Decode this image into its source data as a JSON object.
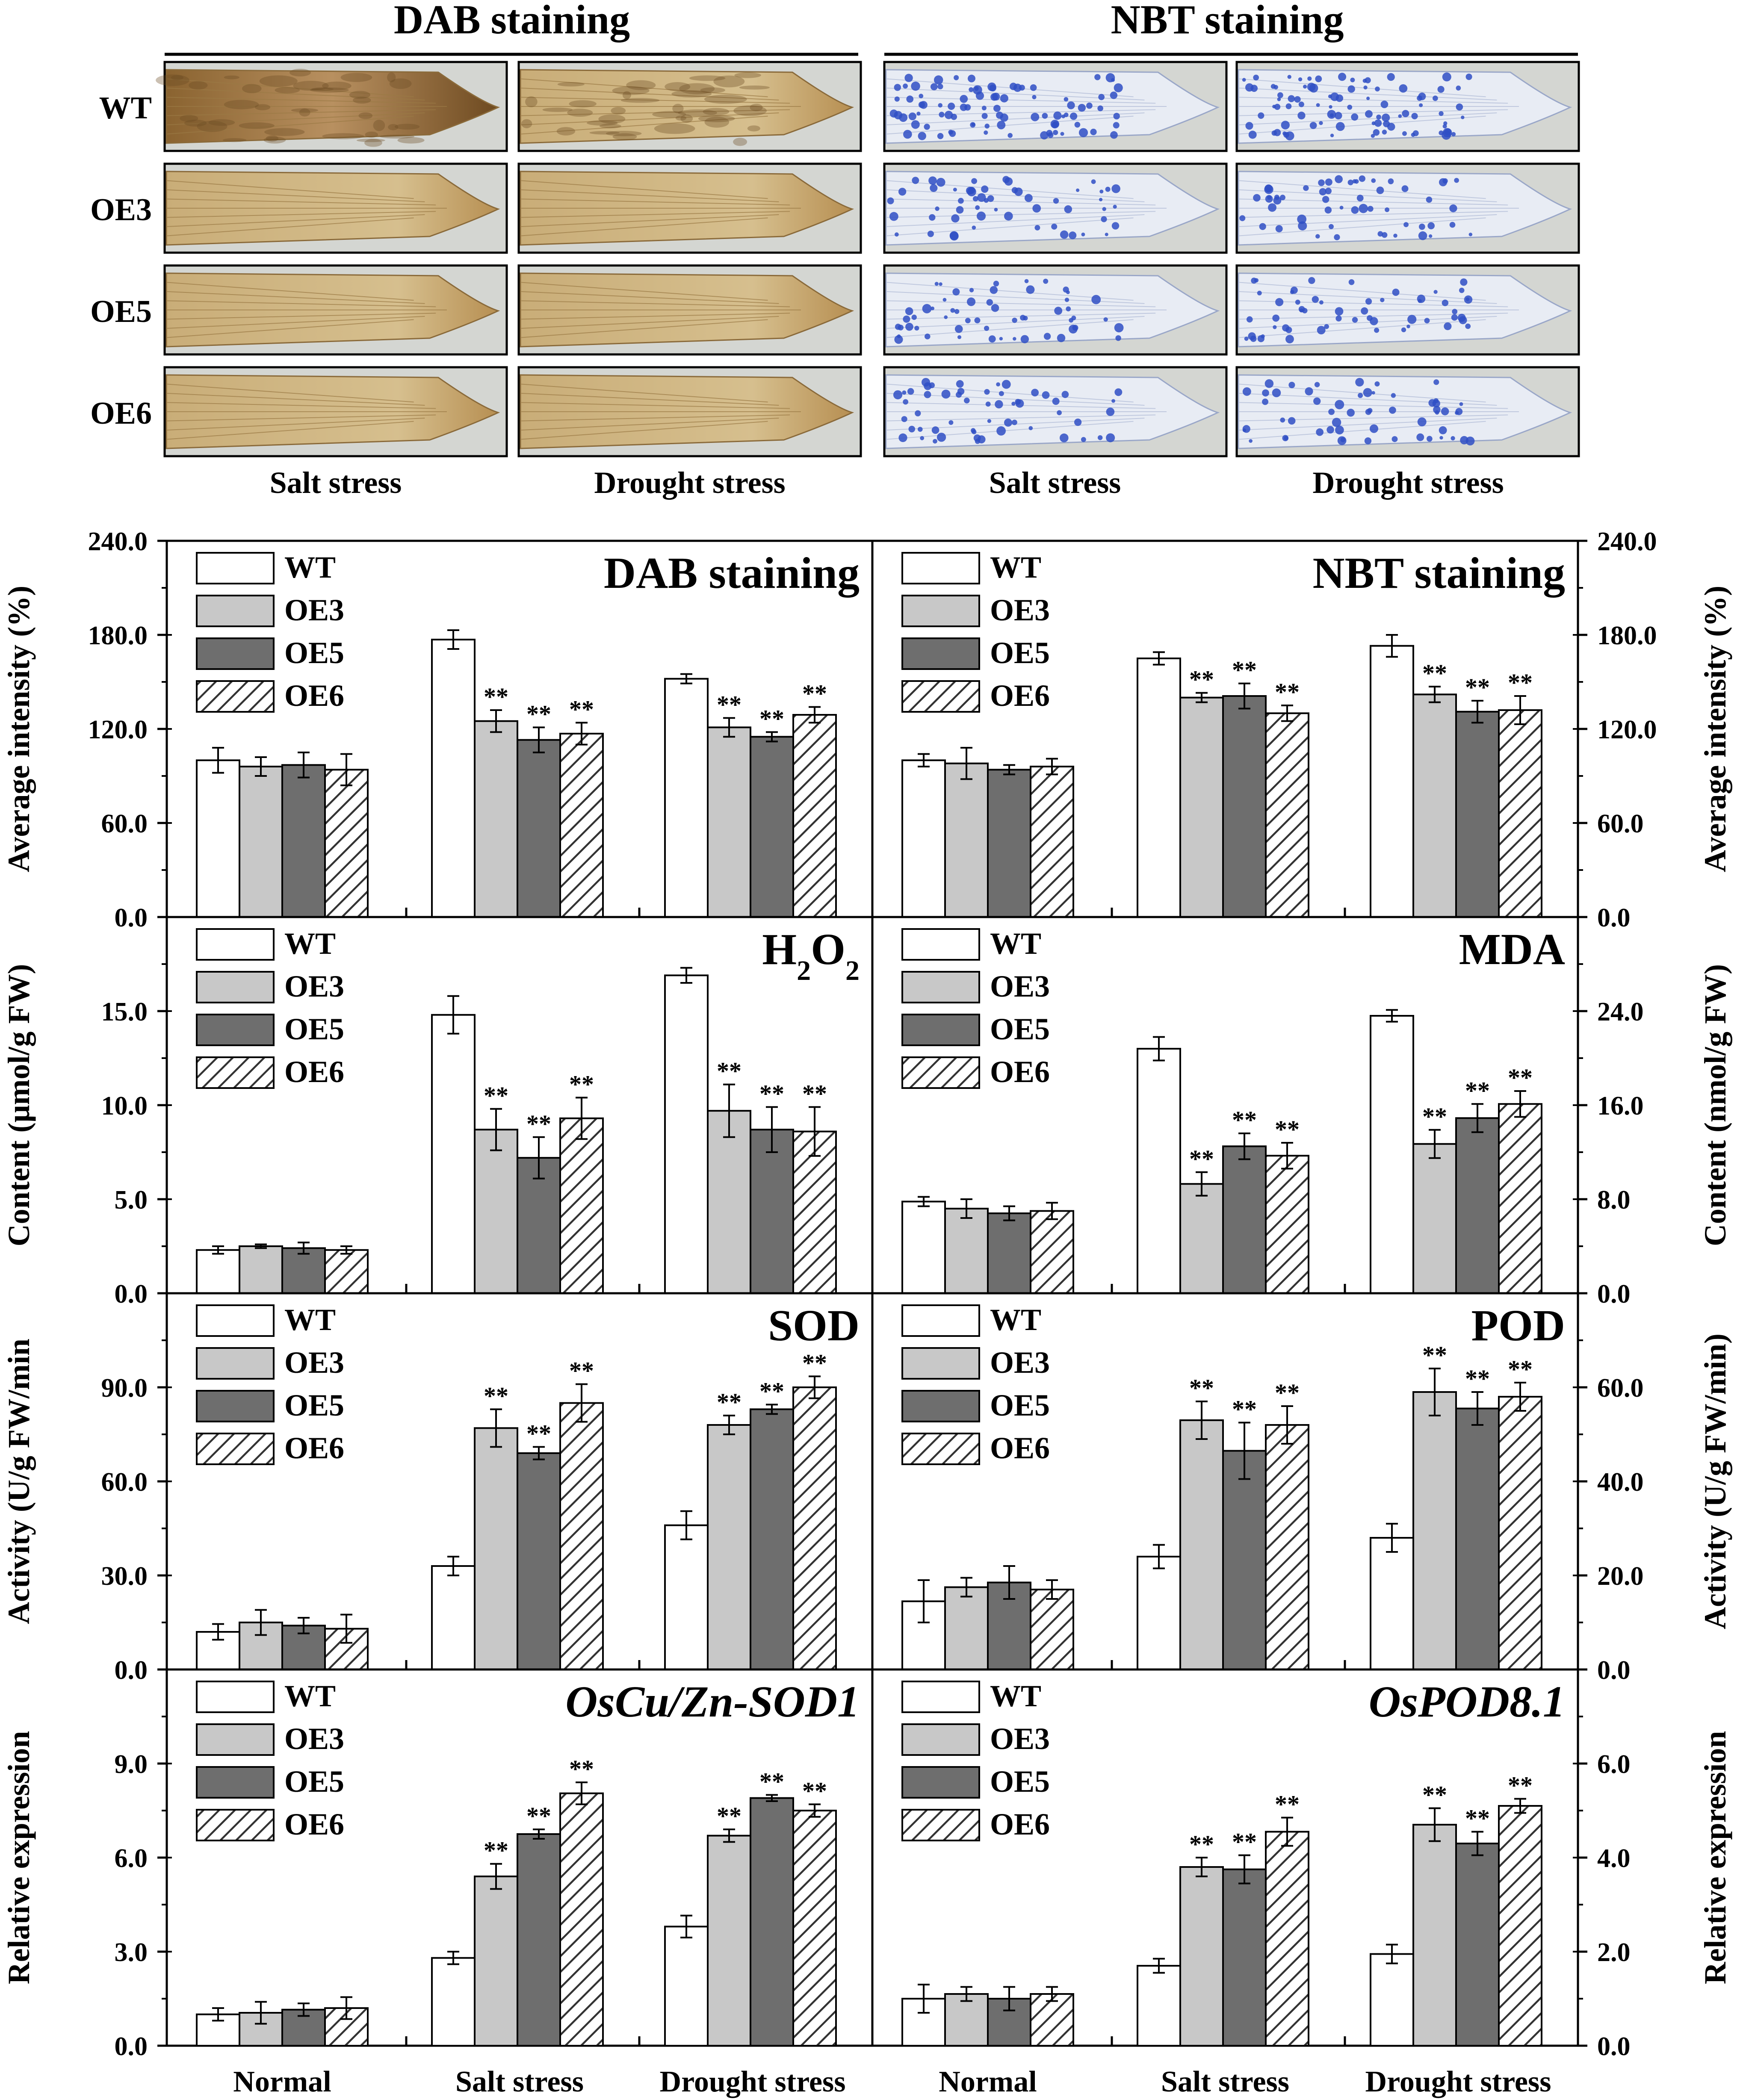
{
  "staining_panel": {
    "headers": [
      "DAB staining",
      "NBT staining"
    ],
    "rows": [
      "WT",
      "OE3",
      "OE5",
      "OE6"
    ],
    "columns": [
      "Salt stress",
      "Drought stress",
      "Salt stress",
      "Drought stress"
    ]
  },
  "groups": [
    "Normal",
    "Salt stress",
    "Drought stress"
  ],
  "legend": [
    "WT",
    "OE3",
    "OE5",
    "OE6"
  ],
  "star_label": "**",
  "colors": {
    "WT": "#ffffff",
    "OE3": "#c8c8c8",
    "OE5": "#6e6e6e",
    "OE6": "#ffffff",
    "dab": "#b8975c",
    "nbt": "#2f4fc4"
  },
  "chart_data": [
    {
      "type": "bar",
      "id": "dab",
      "title": "DAB staining",
      "title_parts": [
        "DAB staining"
      ],
      "categories": [
        "Normal",
        "Salt stress",
        "Drought stress"
      ],
      "ylabel": "Average intensity (%)",
      "ylim": [
        0,
        240
      ],
      "yticks": [
        "0.0",
        "60.0",
        "120.0",
        "180.0",
        "240.0"
      ],
      "series": [
        {
          "name": "WT",
          "values": [
            100,
            177,
            152
          ],
          "errors": [
            8,
            6,
            3
          ]
        },
        {
          "name": "OE3",
          "values": [
            96,
            125,
            121
          ],
          "errors": [
            6,
            7,
            6
          ]
        },
        {
          "name": "OE5",
          "values": [
            97,
            113,
            115
          ],
          "errors": [
            8,
            8,
            3
          ]
        },
        {
          "name": "OE6",
          "values": [
            94,
            117,
            129
          ],
          "errors": [
            10,
            7,
            5
          ]
        }
      ],
      "significant": [
        [
          false,
          false,
          false
        ],
        [
          false,
          true,
          true
        ],
        [
          false,
          true,
          true
        ],
        [
          false,
          true,
          true
        ]
      ]
    },
    {
      "type": "bar",
      "id": "nbt",
      "title": "NBT staining",
      "title_parts": [
        "NBT staining"
      ],
      "categories": [
        "Normal",
        "Salt stress",
        "Drought stress"
      ],
      "ylabel": "Average intensity (%)",
      "ylim": [
        0,
        240
      ],
      "yticks": [
        "0.0",
        "60.0",
        "120.0",
        "180.0",
        "240.0"
      ],
      "series": [
        {
          "name": "WT",
          "values": [
            100,
            165,
            173
          ],
          "errors": [
            4,
            4,
            7
          ]
        },
        {
          "name": "OE3",
          "values": [
            98,
            140,
            142
          ],
          "errors": [
            10,
            3,
            5
          ]
        },
        {
          "name": "OE5",
          "values": [
            94,
            141,
            131
          ],
          "errors": [
            3,
            8,
            7
          ]
        },
        {
          "name": "OE6",
          "values": [
            96,
            130,
            132
          ],
          "errors": [
            5,
            5,
            9
          ]
        }
      ],
      "significant": [
        [
          false,
          false,
          false
        ],
        [
          false,
          true,
          true
        ],
        [
          false,
          true,
          true
        ],
        [
          false,
          true,
          true
        ]
      ]
    },
    {
      "type": "bar",
      "id": "h2o2",
      "title": "H2O2",
      "title_parts": [
        "H",
        "2",
        "O",
        "2"
      ],
      "categories": [
        "Normal",
        "Salt stress",
        "Drought stress"
      ],
      "ylabel": "Content (μmol/g FW)",
      "ylim": [
        0,
        20
      ],
      "yticks": [
        "0.0",
        "5.0",
        "10.0",
        "15.0"
      ],
      "series": [
        {
          "name": "WT",
          "values": [
            2.3,
            14.8,
            16.9
          ],
          "errors": [
            0.2,
            1.0,
            0.4
          ]
        },
        {
          "name": "OE3",
          "values": [
            2.5,
            8.7,
            9.7
          ],
          "errors": [
            0.1,
            1.1,
            1.4
          ]
        },
        {
          "name": "OE5",
          "values": [
            2.4,
            7.2,
            8.7
          ],
          "errors": [
            0.3,
            1.1,
            1.2
          ]
        },
        {
          "name": "OE6",
          "values": [
            2.3,
            9.3,
            8.6
          ],
          "errors": [
            0.2,
            1.1,
            1.3
          ]
        }
      ],
      "significant": [
        [
          false,
          false,
          false
        ],
        [
          false,
          true,
          true
        ],
        [
          false,
          true,
          true
        ],
        [
          false,
          true,
          true
        ]
      ]
    },
    {
      "type": "bar",
      "id": "mda",
      "title": "MDA",
      "title_parts": [
        "MDA"
      ],
      "categories": [
        "Normal",
        "Salt stress",
        "Drought stress"
      ],
      "ylabel": "Content  (nmol/g FW)",
      "ylim": [
        0,
        32
      ],
      "yticks": [
        "0.0",
        "8.0",
        "16.0",
        "24.0"
      ],
      "series": [
        {
          "name": "WT",
          "values": [
            7.8,
            20.8,
            23.6
          ],
          "errors": [
            0.4,
            1.0,
            0.5
          ]
        },
        {
          "name": "OE3",
          "values": [
            7.2,
            9.3,
            12.7
          ],
          "errors": [
            0.8,
            1.0,
            1.2
          ]
        },
        {
          "name": "OE5",
          "values": [
            6.8,
            12.5,
            14.9
          ],
          "errors": [
            0.6,
            1.1,
            1.2
          ]
        },
        {
          "name": "OE6",
          "values": [
            7.0,
            11.7,
            16.1
          ],
          "errors": [
            0.7,
            1.1,
            1.1
          ]
        }
      ],
      "significant": [
        [
          false,
          false,
          false
        ],
        [
          false,
          true,
          true
        ],
        [
          false,
          true,
          true
        ],
        [
          false,
          true,
          true
        ]
      ]
    },
    {
      "type": "bar",
      "id": "sod",
      "title": "SOD",
      "title_parts": [
        "SOD"
      ],
      "categories": [
        "Normal",
        "Salt stress",
        "Drought stress"
      ],
      "ylabel": "Activity (U/g FW/min",
      "ylim": [
        0,
        120
      ],
      "yticks": [
        "0.0",
        "30.0",
        "60.0",
        "90.0"
      ],
      "series": [
        {
          "name": "WT",
          "values": [
            12,
            33,
            46
          ],
          "errors": [
            2.5,
            3,
            4.5
          ]
        },
        {
          "name": "OE3",
          "values": [
            15,
            77,
            78
          ],
          "errors": [
            4,
            6,
            3
          ]
        },
        {
          "name": "OE5",
          "values": [
            14,
            69,
            83
          ],
          "errors": [
            2.5,
            2,
            1.5
          ]
        },
        {
          "name": "OE6",
          "values": [
            13,
            85,
            90
          ],
          "errors": [
            4.5,
            6,
            3.5
          ]
        }
      ],
      "significant": [
        [
          false,
          false,
          false
        ],
        [
          false,
          true,
          true
        ],
        [
          false,
          true,
          true
        ],
        [
          false,
          true,
          true
        ]
      ]
    },
    {
      "type": "bar",
      "id": "pod",
      "title": "POD",
      "title_parts": [
        "POD"
      ],
      "categories": [
        "Normal",
        "Salt stress",
        "Drought stress"
      ],
      "ylabel": "Activity (U/g FW/min)",
      "ylim": [
        0,
        80
      ],
      "yticks": [
        "0.0",
        "20.0",
        "40.0",
        "60.0"
      ],
      "series": [
        {
          "name": "WT",
          "values": [
            14.5,
            24,
            28
          ],
          "errors": [
            4.5,
            2.5,
            3
          ]
        },
        {
          "name": "OE3",
          "values": [
            17.5,
            53,
            59
          ],
          "errors": [
            2,
            4,
            5
          ]
        },
        {
          "name": "OE5",
          "values": [
            18.5,
            46.5,
            55.5
          ],
          "errors": [
            3.5,
            6,
            3.5
          ]
        },
        {
          "name": "OE6",
          "values": [
            17,
            52,
            58
          ],
          "errors": [
            2,
            4,
            3
          ]
        }
      ],
      "significant": [
        [
          false,
          false,
          false
        ],
        [
          false,
          true,
          true
        ],
        [
          false,
          true,
          true
        ],
        [
          false,
          true,
          true
        ]
      ]
    },
    {
      "type": "bar",
      "id": "cuzn",
      "title": "OsCu/Zn-SOD1",
      "title_parts": [
        "OsCu/Zn-SOD1"
      ],
      "title_italic": true,
      "categories": [
        "Normal",
        "Salt stress",
        "Drought stress"
      ],
      "ylabel": "Relative expression",
      "ylim": [
        0,
        12
      ],
      "yticks": [
        "0.0",
        "3.0",
        "6.0",
        "9.0"
      ],
      "series": [
        {
          "name": "WT",
          "values": [
            1.0,
            2.8,
            3.8
          ],
          "errors": [
            0.2,
            0.2,
            0.35
          ]
        },
        {
          "name": "OE3",
          "values": [
            1.05,
            5.4,
            6.7
          ],
          "errors": [
            0.35,
            0.4,
            0.2
          ]
        },
        {
          "name": "OE5",
          "values": [
            1.15,
            6.75,
            7.9
          ],
          "errors": [
            0.2,
            0.15,
            0.1
          ]
        },
        {
          "name": "OE6",
          "values": [
            1.2,
            8.05,
            7.5
          ],
          "errors": [
            0.35,
            0.35,
            0.2
          ]
        }
      ],
      "significant": [
        [
          false,
          false,
          false
        ],
        [
          false,
          true,
          true
        ],
        [
          false,
          true,
          true
        ],
        [
          false,
          true,
          true
        ]
      ]
    },
    {
      "type": "bar",
      "id": "pod8",
      "title": "OsPOD8.1",
      "title_parts": [
        "OsPOD8.1"
      ],
      "title_italic": true,
      "categories": [
        "Normal",
        "Salt stress",
        "Drought stress"
      ],
      "ylabel": "Relative expression",
      "ylim": [
        0,
        8
      ],
      "yticks": [
        "0.0",
        "2.0",
        "4.0",
        "6.0"
      ],
      "series": [
        {
          "name": "WT",
          "values": [
            1.0,
            1.7,
            1.95
          ],
          "errors": [
            0.3,
            0.15,
            0.2
          ]
        },
        {
          "name": "OE3",
          "values": [
            1.1,
            3.8,
            4.7
          ],
          "errors": [
            0.15,
            0.2,
            0.35
          ]
        },
        {
          "name": "OE5",
          "values": [
            1.0,
            3.75,
            4.3
          ],
          "errors": [
            0.25,
            0.3,
            0.25
          ]
        },
        {
          "name": "OE6",
          "values": [
            1.1,
            4.55,
            5.1
          ],
          "errors": [
            0.15,
            0.3,
            0.15
          ]
        }
      ],
      "significant": [
        [
          false,
          false,
          false
        ],
        [
          false,
          true,
          true
        ],
        [
          false,
          true,
          true
        ],
        [
          false,
          true,
          true
        ]
      ]
    }
  ]
}
